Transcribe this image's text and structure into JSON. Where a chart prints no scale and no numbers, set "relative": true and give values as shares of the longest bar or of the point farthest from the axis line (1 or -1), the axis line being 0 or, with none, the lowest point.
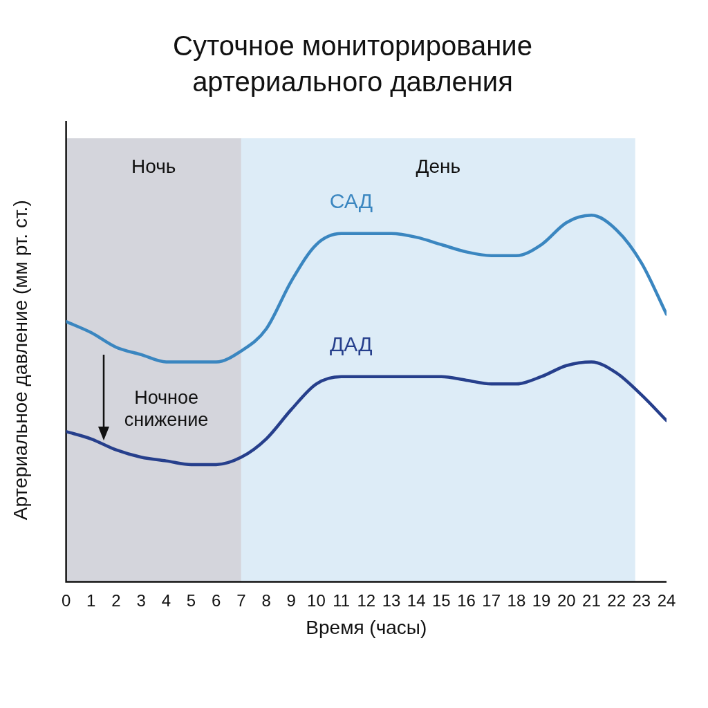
{
  "chart_data": {
    "type": "line",
    "title": "Суточное мониторирование артериального давления",
    "xlabel": "Время (часы)",
    "ylabel": "Артериальное давление (мм рт. ст.)",
    "x": [
      0,
      1,
      2,
      3,
      4,
      5,
      6,
      7,
      8,
      9,
      10,
      11,
      12,
      13,
      14,
      15,
      16,
      17,
      18,
      19,
      20,
      21,
      22,
      23,
      24
    ],
    "xlim": [
      0,
      24
    ],
    "xticks": [
      0,
      1,
      2,
      3,
      4,
      5,
      6,
      7,
      8,
      9,
      10,
      11,
      12,
      13,
      14,
      15,
      16,
      17,
      18,
      19,
      20,
      21,
      22,
      23,
      24
    ],
    "relative": true,
    "grid": false,
    "legend": false,
    "marker": "none",
    "line_style": "solid",
    "series": [
      {
        "name": "САД",
        "color": "#3a86c0",
        "values": [
          0.71,
          0.68,
          0.64,
          0.62,
          0.6,
          0.6,
          0.6,
          0.63,
          0.69,
          0.82,
          0.92,
          0.95,
          0.95,
          0.95,
          0.94,
          0.92,
          0.9,
          0.89,
          0.89,
          0.92,
          0.98,
          1,
          0.96,
          0.87,
          0.73
        ]
      },
      {
        "name": "ДАД",
        "color": "#263f8c",
        "values": [
          0.41,
          0.39,
          0.36,
          0.34,
          0.33,
          0.32,
          0.32,
          0.34,
          0.39,
          0.47,
          0.54,
          0.56,
          0.56,
          0.56,
          0.56,
          0.56,
          0.55,
          0.54,
          0.54,
          0.56,
          0.59,
          0.6,
          0.57,
          0.51,
          0.44
        ]
      }
    ],
    "bands": [
      {
        "axis": "x",
        "from": 0,
        "to": 7,
        "label": "Ночь",
        "color": "#d4d5dc"
      },
      {
        "axis": "x",
        "from": 7,
        "to": 22.75,
        "label": "День",
        "color": "#ddecf7"
      }
    ],
    "annotations": [
      "Ночное снижение"
    ]
  }
}
